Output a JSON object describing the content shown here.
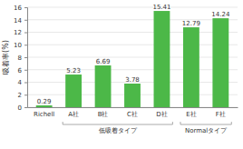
{
  "chart_data": {
    "type": "bar",
    "y_label": "吸着率(%)",
    "categories": [
      "Richell",
      "A社",
      "B社",
      "C社",
      "D社",
      "E社",
      "F社"
    ],
    "values": [
      0.29,
      5.23,
      6.69,
      3.78,
      15.41,
      12.79,
      14.24
    ],
    "color": "#4cb848",
    "ylim": [
      0,
      16
    ],
    "yticks": [
      0,
      2,
      4,
      6,
      8,
      10,
      12,
      14,
      16
    ],
    "grid": true,
    "data_labels": true,
    "groups": [
      {
        "label": "低吸着タイプ",
        "members": [
          "A社",
          "B社",
          "C社",
          "D社"
        ]
      },
      {
        "label": "Normalタイプ",
        "members": [
          "E社",
          "F社"
        ]
      }
    ]
  }
}
